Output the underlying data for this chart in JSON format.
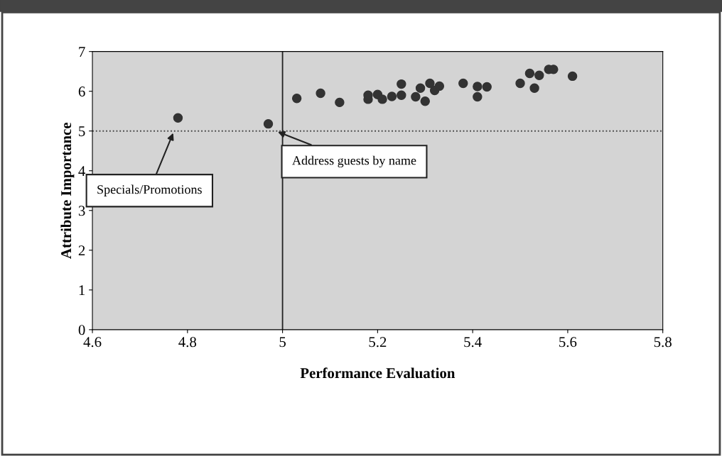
{
  "chart_data": {
    "type": "scatter",
    "xlabel": "Performance Evaluation",
    "ylabel": "Attribute Importance",
    "x": [
      4.78,
      4.97,
      5.03,
      5.08,
      5.12,
      5.18,
      5.18,
      5.2,
      5.21,
      5.23,
      5.25,
      5.25,
      5.28,
      5.29,
      5.3,
      5.31,
      5.32,
      5.33,
      5.38,
      5.41,
      5.41,
      5.43,
      5.5,
      5.52,
      5.53,
      5.54,
      5.56,
      5.57,
      5.61
    ],
    "values": [
      5.33,
      5.18,
      5.82,
      5.95,
      5.72,
      5.8,
      5.9,
      5.92,
      5.8,
      5.87,
      5.9,
      6.18,
      5.86,
      6.08,
      5.75,
      6.2,
      6.02,
      6.13,
      6.2,
      6.12,
      5.86,
      6.11,
      6.2,
      6.45,
      6.08,
      6.4,
      6.55,
      6.55,
      6.38
    ],
    "color": "#333333",
    "marker": "circle",
    "xlim": [
      4.6,
      5.8
    ],
    "xticks": [
      4.6,
      4.8,
      5,
      5.2,
      5.4,
      5.6,
      5.8
    ],
    "ylim": [
      0,
      7
    ],
    "yticks": [
      0,
      1,
      2,
      3,
      4,
      5,
      6,
      7
    ],
    "grid": false,
    "ref_lines": [
      {
        "axis": "x",
        "value": 5,
        "color": "#222222",
        "line_style": "solid"
      },
      {
        "axis": "y",
        "value": 5,
        "color": "#444444",
        "line_style": "dotted"
      }
    ],
    "annotations": [
      {
        "text": "Specials/Promotions",
        "x": 4.77,
        "y": 4.95
      },
      {
        "text": "Address guests by name",
        "x": 4.99,
        "y": 4.98
      }
    ]
  }
}
